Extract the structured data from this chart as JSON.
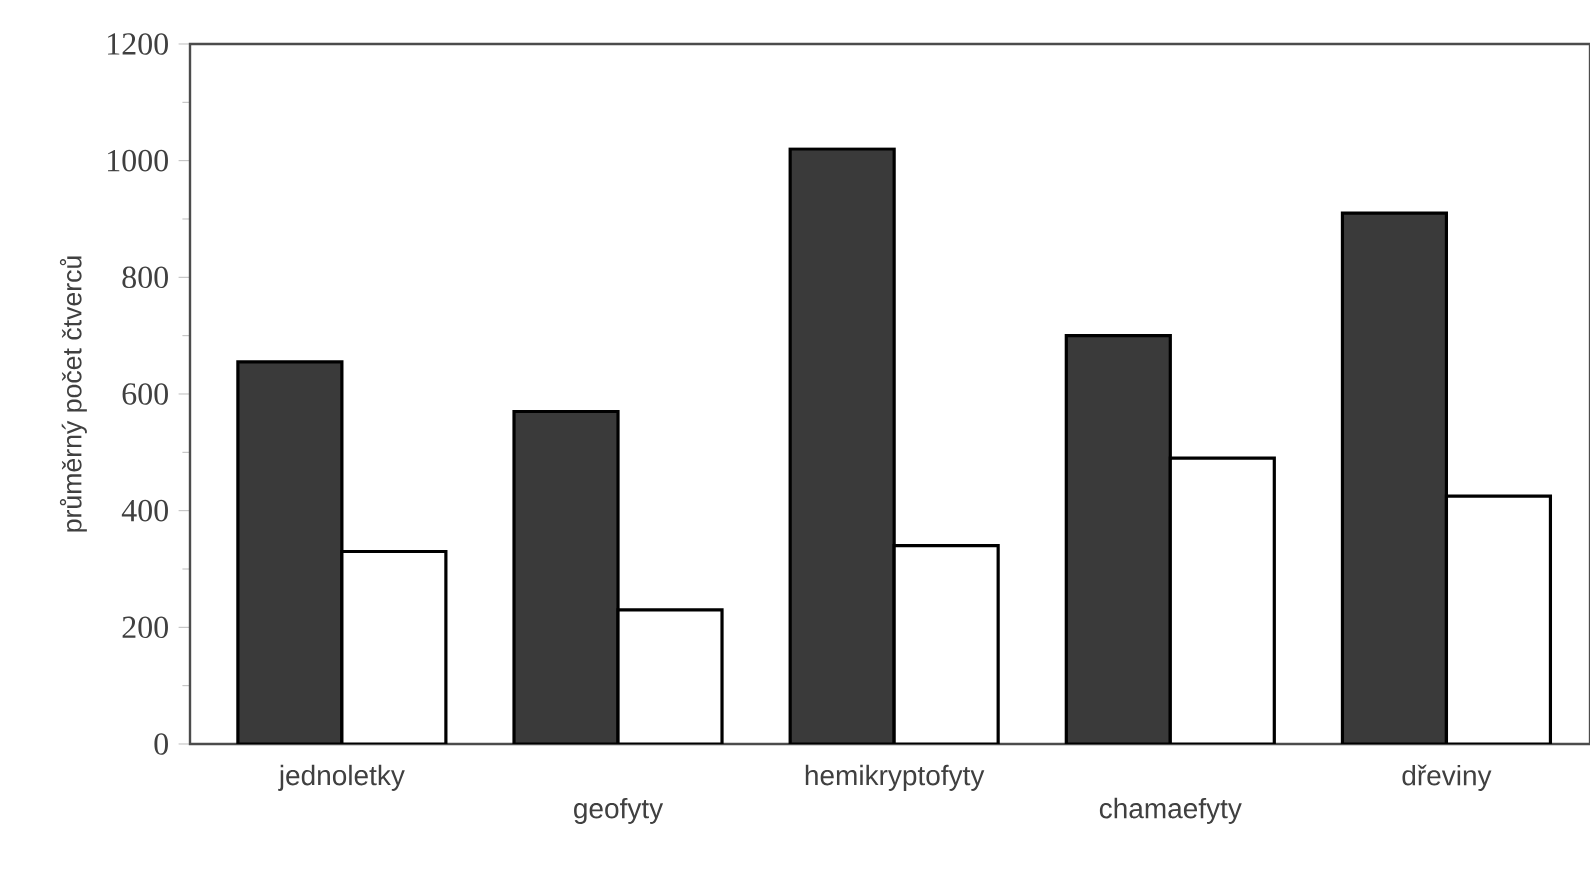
{
  "chart_data": {
    "type": "bar",
    "ylabel": "průměrný počet čtverců",
    "categories": [
      "jednoletky",
      "geofyty",
      "hemikryptofyty",
      "chamaefyty",
      "dřeviny"
    ],
    "series": [
      {
        "color": "#3a3a3a",
        "values": [
          655,
          570,
          1020,
          700,
          910
        ]
      },
      {
        "color": "#ffffff",
        "values": [
          330,
          230,
          340,
          490,
          425
        ]
      }
    ],
    "ylim": [
      0,
      1200
    ],
    "yticks": [
      0,
      200,
      400,
      600,
      800,
      1000,
      1200
    ]
  }
}
